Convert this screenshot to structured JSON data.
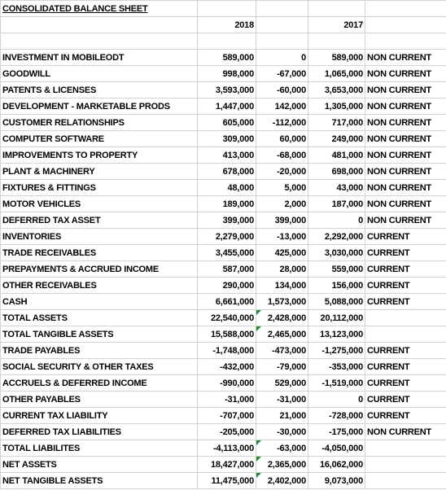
{
  "title": "CONSOLIDATED BALANCE SHEET",
  "headers": {
    "year1": "2018",
    "year2": "2017"
  },
  "rows": [
    {
      "label": "INVESTMENT IN MOBILEODT",
      "v2018": "589,000",
      "change": "0",
      "change_sign": "zero",
      "v2017": "589,000",
      "class": "NON CURRENT"
    },
    {
      "label": "GOODWILL",
      "v2018": "998,000",
      "change": "-67,000",
      "change_sign": "neg",
      "v2017": "1,065,000",
      "class": "NON CURRENT"
    },
    {
      "label": "PATENTS & LICENSES",
      "v2018": "3,593,000",
      "change": "-60,000",
      "change_sign": "neg",
      "v2017": "3,653,000",
      "class": "NON CURRENT"
    },
    {
      "label": "DEVELOPMENT - MARKETABLE PRODS",
      "v2018": "1,447,000",
      "change": "142,000",
      "change_sign": "pos",
      "v2017": "1,305,000",
      "class": "NON CURRENT"
    },
    {
      "label": "CUSTOMER RELATIONSHIPS",
      "v2018": "605,000",
      "change": "-112,000",
      "change_sign": "neg",
      "v2017": "717,000",
      "class": "NON CURRENT"
    },
    {
      "label": "COMPUTER SOFTWARE",
      "v2018": "309,000",
      "change": "60,000",
      "change_sign": "pos",
      "v2017": "249,000",
      "class": "NON CURRENT"
    },
    {
      "label": "IMPROVEMENTS TO  PROPERTY",
      "v2018": "413,000",
      "change": "-68,000",
      "change_sign": "neg",
      "v2017": "481,000",
      "class": "NON CURRENT"
    },
    {
      "label": "PLANT & MACHINERY",
      "v2018": "678,000",
      "change": "-20,000",
      "change_sign": "neg",
      "v2017": "698,000",
      "class": "NON CURRENT"
    },
    {
      "label": "FIXTURES & FITTINGS",
      "v2018": "48,000",
      "change": "5,000",
      "change_sign": "pos",
      "v2017": "43,000",
      "class": "NON CURRENT"
    },
    {
      "label": "MOTOR VEHICLES",
      "v2018": "189,000",
      "change": "2,000",
      "change_sign": "pos",
      "v2017": "187,000",
      "class": "NON CURRENT"
    },
    {
      "label": "DEFERRED TAX ASSET",
      "v2018": "399,000",
      "change": "399,000",
      "change_sign": "pos",
      "v2017": "0",
      "class": "NON CURRENT"
    },
    {
      "label": "INVENTORIES",
      "v2018": "2,279,000",
      "change": "-13,000",
      "change_sign": "neg",
      "v2017": "2,292,000",
      "class": "CURRENT"
    },
    {
      "label": "TRADE RECEIVABLES",
      "v2018": "3,455,000",
      "change": "425,000",
      "change_sign": "pos",
      "v2017": "3,030,000",
      "class": "CURRENT"
    },
    {
      "label": "PREPAYMENTS & ACCRUED INCOME",
      "v2018": "587,000",
      "change": "28,000",
      "change_sign": "pos",
      "v2017": "559,000",
      "class": "CURRENT"
    },
    {
      "label": "OTHER RECEIVABLES",
      "v2018": "290,000",
      "change": "134,000",
      "change_sign": "pos",
      "v2017": "156,000",
      "class": "CURRENT"
    },
    {
      "label": "CASH",
      "v2018": "6,661,000",
      "change": "1,573,000",
      "change_sign": "pos",
      "v2017": "5,088,000",
      "class": "CURRENT"
    },
    {
      "label": "TOTAL ASSETS",
      "v2018": "22,540,000",
      "change": "2,428,000",
      "change_sign": "pos",
      "flag": true,
      "v2017": "20,112,000",
      "class": ""
    },
    {
      "label": "TOTAL TANGIBLE ASSETS",
      "v2018": "15,588,000",
      "change": "2,465,000",
      "change_sign": "pos",
      "flag": true,
      "v2017": "13,123,000",
      "class": ""
    },
    {
      "label": "TRADE PAYABLES",
      "v2018": "-1,748,000",
      "change": "-473,000",
      "change_sign": "neg",
      "v2017": "-1,275,000",
      "class": "CURRENT"
    },
    {
      "label": "SOCIAL SECURITY & OTHER TAXES",
      "v2018": "-432,000",
      "change": "-79,000",
      "change_sign": "neg",
      "v2017": "-353,000",
      "class": "CURRENT"
    },
    {
      "label": "ACCRUELS & DEFERRED INCOME",
      "v2018": "-990,000",
      "change": "529,000",
      "change_sign": "pos",
      "v2017": "-1,519,000",
      "class": "CURRENT"
    },
    {
      "label": "OTHER PAYABLES",
      "v2018": "-31,000",
      "change": "-31,000",
      "change_sign": "neg",
      "v2017": "0",
      "class": "CURRENT"
    },
    {
      "label": "CURRENT TAX LIABILITY",
      "v2018": "-707,000",
      "change": "21,000",
      "change_sign": "pos",
      "v2017": "-728,000",
      "class": "CURRENT"
    },
    {
      "label": "DEFERRED TAX LIABILITIES",
      "v2018": "-205,000",
      "change": "-30,000",
      "change_sign": "neg",
      "v2017": "-175,000",
      "class": "NON CURRENT"
    },
    {
      "label": "TOTAL LIABILITES",
      "v2018": "-4,113,000",
      "change": "-63,000",
      "change_sign": "neg",
      "flag": true,
      "v2017": "-4,050,000",
      "class": ""
    },
    {
      "label": "NET ASSETS",
      "v2018": "18,427,000",
      "change": "2,365,000",
      "change_sign": "pos",
      "flag": true,
      "v2017": "16,062,000",
      "class": ""
    },
    {
      "label": "NET TANGIBLE ASSETS",
      "v2018": "11,475,000",
      "change": "2,402,000",
      "change_sign": "pos",
      "flag": true,
      "v2017": "9,073,000",
      "class": ""
    }
  ]
}
